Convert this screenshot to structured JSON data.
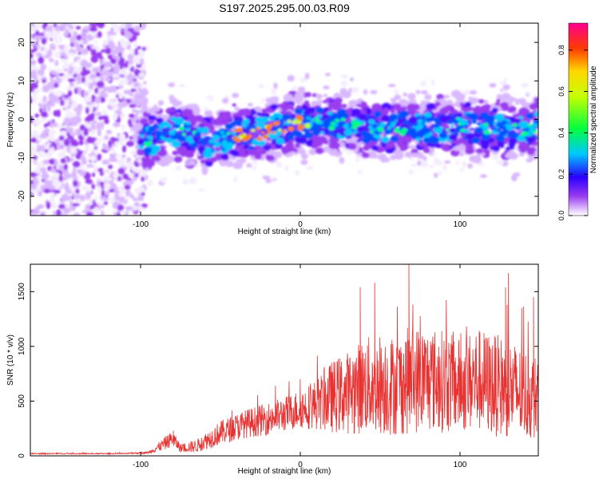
{
  "title": "S197.2025.295.00.03.R09",
  "chart_data": [
    {
      "type": "heatmap",
      "xlabel": "Height of straight line (km)",
      "ylabel": "Frequency (Hz)",
      "xlim": [
        -169,
        149
      ],
      "ylim": [
        -25,
        25
      ],
      "xticks": [
        -100,
        0,
        100
      ],
      "xtick_labels": [
        "-100",
        "0",
        "100"
      ],
      "yticks": [
        -20,
        -10,
        0,
        10,
        20
      ],
      "ytick_labels": [
        "-20",
        "-10",
        "0",
        "10",
        "20"
      ],
      "colorbar": {
        "label": "Normalized spectral amplitude",
        "range": [
          0,
          0.93
        ],
        "ticks": [
          0.0,
          0.2,
          0.4,
          0.6,
          0.8
        ],
        "tick_labels": [
          "0.0",
          "0.2",
          "0.4",
          "0.6",
          "0.8"
        ]
      },
      "ridge": {
        "x": [
          -100,
          -90,
          -80,
          -70,
          -60,
          -50,
          -40,
          -30,
          -20,
          -10,
          0,
          10,
          20,
          30,
          40,
          50,
          60,
          70,
          80,
          90,
          100,
          110,
          120,
          130,
          140,
          149
        ],
        "y": [
          -6,
          -5,
          -3,
          -4,
          -6,
          -5,
          -4,
          -4,
          -3,
          -2,
          -1,
          -1,
          -1,
          -1,
          -2,
          -2,
          -2,
          -2,
          -2,
          -2,
          -1,
          -3,
          -2,
          -2,
          -3,
          -2
        ]
      }
    },
    {
      "type": "line",
      "xlabel": "Height of straight line (km)",
      "ylabel": "SNR (10 * v/v)",
      "xlim": [
        -169,
        149
      ],
      "ylim": [
        0,
        1750
      ],
      "xticks": [
        -100,
        0,
        100
      ],
      "xtick_labels": [
        "-100",
        "0",
        "100"
      ],
      "yticks": [
        0,
        500,
        1000,
        1500
      ],
      "ytick_labels": [
        "0",
        "500",
        "1000",
        "1500"
      ],
      "series": [
        {
          "name": "SNR",
          "color": "#e83232",
          "envelope_x": [
            -169,
            -110,
            -95,
            -85,
            -80,
            -75,
            -65,
            -50,
            -35,
            -20,
            -10,
            0,
            10,
            20,
            30,
            40,
            50,
            60,
            70,
            80,
            90,
            100,
            110,
            120,
            130,
            140,
            149
          ],
          "envelope_y": [
            20,
            20,
            30,
            110,
            160,
            70,
            90,
            210,
            290,
            340,
            380,
            430,
            470,
            540,
            580,
            640,
            660,
            640,
            700,
            700,
            680,
            640,
            700,
            650,
            620,
            560,
            530
          ],
          "spread": [
            5,
            5,
            10,
            60,
            70,
            40,
            60,
            110,
            130,
            150,
            160,
            180,
            230,
            330,
            380,
            440,
            470,
            460,
            500,
            480,
            470,
            430,
            480,
            470,
            460,
            420,
            380
          ],
          "peaks": [
            {
              "x": -79.5,
              "y": 230
            },
            {
              "x": 37.5,
              "y": 1540
            },
            {
              "x": 46.6,
              "y": 1580
            },
            {
              "x": 68,
              "y": 1760
            },
            {
              "x": 128.5,
              "y": 1540
            },
            {
              "x": 129.5,
              "y": 1380
            },
            {
              "x": 146,
              "y": 1450
            }
          ]
        }
      ]
    }
  ]
}
